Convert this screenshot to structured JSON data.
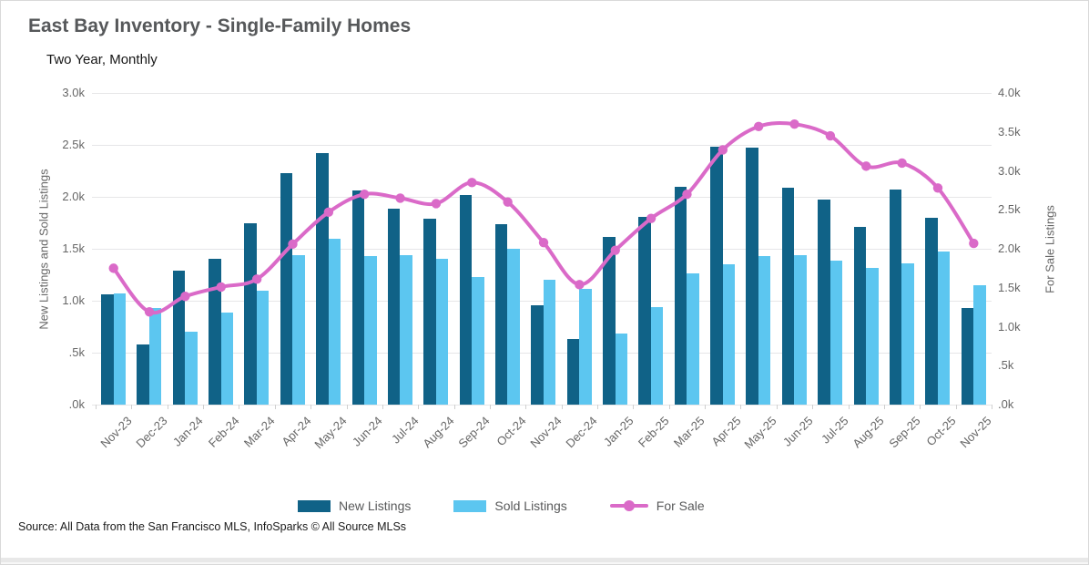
{
  "header": {
    "title": "East Bay Inventory - Single-Family Homes",
    "subtitle": "Two Year, Monthly"
  },
  "source_note": "Source: All Data from the San Francisco MLS, InfoSparks © All Source MLSs",
  "colors": {
    "new_listings": "#106287",
    "sold_listings": "#5cc6f0",
    "for_sale": "#da6ac8",
    "grid": "#e6e6e8",
    "axis_text": "#666666",
    "title_text": "#56585a"
  },
  "chart_data": {
    "type": "bar",
    "subtype": "grouped bars with overlaid line",
    "title": "East Bay Inventory - Single-Family Homes",
    "subtitle": "Two Year, Monthly",
    "grid": true,
    "legend_position": "bottom",
    "categories": [
      "Nov-23",
      "Dec-23",
      "Jan-24",
      "Feb-24",
      "Mar-24",
      "Apr-24",
      "May-24",
      "Jun-24",
      "Jul-24",
      "Aug-24",
      "Sep-24",
      "Oct-24",
      "Nov-24",
      "Dec-24",
      "Jan-25",
      "Feb-25",
      "Mar-25",
      "Apr-25",
      "May-25",
      "Jun-25",
      "Jul-25",
      "Aug-25",
      "Sep-25",
      "Oct-25",
      "Nov-25"
    ],
    "series": [
      {
        "name": "New Listings",
        "type": "bar",
        "axis": "left",
        "color": "#106287",
        "values": [
          1060,
          580,
          1290,
          1400,
          1750,
          2230,
          2420,
          2060,
          1890,
          1790,
          2020,
          1740,
          960,
          630,
          1610,
          1810,
          2100,
          2480,
          2470,
          2090,
          1970,
          1710,
          2070,
          1800,
          930
        ]
      },
      {
        "name": "Sold Listings",
        "type": "bar",
        "axis": "left",
        "color": "#5cc6f0",
        "values": [
          1070,
          930,
          700,
          890,
          1100,
          1440,
          1600,
          1430,
          1440,
          1400,
          1230,
          1500,
          1200,
          1110,
          680,
          940,
          1260,
          1350,
          1430,
          1440,
          1390,
          1320,
          1360,
          1470,
          1150
        ]
      },
      {
        "name": "For Sale",
        "type": "line",
        "axis": "right",
        "color": "#da6ac8",
        "values": [
          1750,
          1190,
          1390,
          1510,
          1610,
          2060,
          2470,
          2700,
          2650,
          2580,
          2850,
          2600,
          2080,
          1540,
          1980,
          2390,
          2700,
          3270,
          3570,
          3600,
          3450,
          3060,
          3100,
          2780,
          2070
        ]
      }
    ],
    "left_axis": {
      "label": "New Listings and Sold Listings",
      "min": 0,
      "max": 3000,
      "ticks": [
        "3.0k",
        "2.5k",
        "2.0k",
        "1.5k",
        "1.0k",
        ".5k",
        ".0k"
      ]
    },
    "right_axis": {
      "label": "For Sale Listings",
      "min": 0,
      "max": 4000,
      "ticks": [
        "4.0k",
        "3.5k",
        "3.0k",
        "2.5k",
        "2.0k",
        "1.5k",
        "1.0k",
        ".5k",
        ".0k"
      ]
    }
  }
}
